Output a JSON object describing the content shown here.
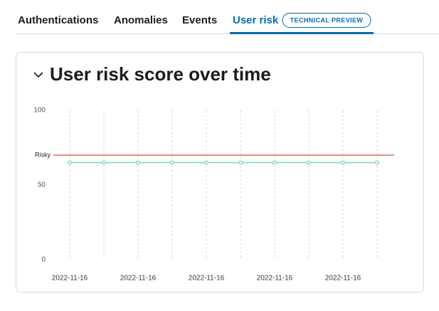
{
  "tabs": [
    "Authentications",
    "Anomalies",
    "Events",
    "User risk"
  ],
  "badge": "TECHNICAL PREVIEW",
  "panel_title": "User risk score over time",
  "chart_data": {
    "type": "line",
    "categories": [
      "2022-11-16",
      null,
      "2022-11-16",
      null,
      "2022-11-16",
      null,
      "2022-11-16",
      null,
      "2022-11-16",
      null
    ],
    "series": [
      {
        "name": "User risk score",
        "color": "#7dd3bd",
        "values": [
          65,
          65,
          65,
          65,
          65,
          65,
          65,
          65,
          65,
          65
        ]
      }
    ],
    "threshold": {
      "label": "Risky",
      "value": 70,
      "color": "#c8553d"
    },
    "ylim": [
      0,
      100
    ],
    "yticks": [
      0,
      50,
      100
    ],
    "grid": true
  }
}
